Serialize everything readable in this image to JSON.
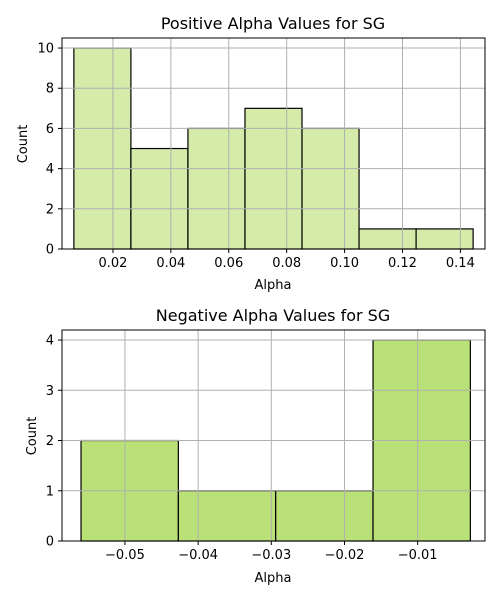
{
  "chart_data": [
    {
      "type": "bar",
      "title": "Positive Alpha Values for SG",
      "xlabel": "Alpha",
      "ylabel": "Count",
      "xlim": [
        0.0024,
        0.1485
      ],
      "ylim": [
        0,
        10.5
      ],
      "bin_edges": [
        0.0065,
        0.0262,
        0.0459,
        0.0656,
        0.0853,
        0.105,
        0.1247,
        0.1444
      ],
      "values": [
        10,
        5,
        6,
        7,
        6,
        1,
        1
      ],
      "xticks": [
        0.02,
        0.04,
        0.06,
        0.08,
        0.1,
        0.12,
        0.14
      ],
      "xtick_labels": [
        "0.02",
        "0.04",
        "0.06",
        "0.08",
        "0.10",
        "0.12",
        "0.14"
      ],
      "yticks": [
        0,
        2,
        4,
        6,
        8,
        10
      ],
      "ytick_labels": [
        "0",
        "2",
        "4",
        "6",
        "8",
        "10"
      ],
      "bar_color": "#d4ebaa",
      "grid": true
    },
    {
      "type": "bar",
      "title": "Negative Alpha Values for SG",
      "xlabel": "Alpha",
      "ylabel": "Count",
      "xlim": [
        -0.0586,
        -0.0008
      ],
      "ylim": [
        0,
        4.2
      ],
      "bin_edges": [
        -0.056,
        -0.0427,
        -0.0294,
        -0.0161,
        -0.0028
      ],
      "values": [
        2,
        1,
        1,
        4
      ],
      "xticks": [
        -0.05,
        -0.04,
        -0.03,
        -0.02,
        -0.01
      ],
      "xtick_labels": [
        "−0.05",
        "−0.04",
        "−0.03",
        "−0.02",
        "−0.01"
      ],
      "yticks": [
        0,
        1,
        2,
        3,
        4
      ],
      "ytick_labels": [
        "0",
        "1",
        "2",
        "3",
        "4"
      ],
      "bar_color": "#bae078",
      "grid": true
    }
  ]
}
